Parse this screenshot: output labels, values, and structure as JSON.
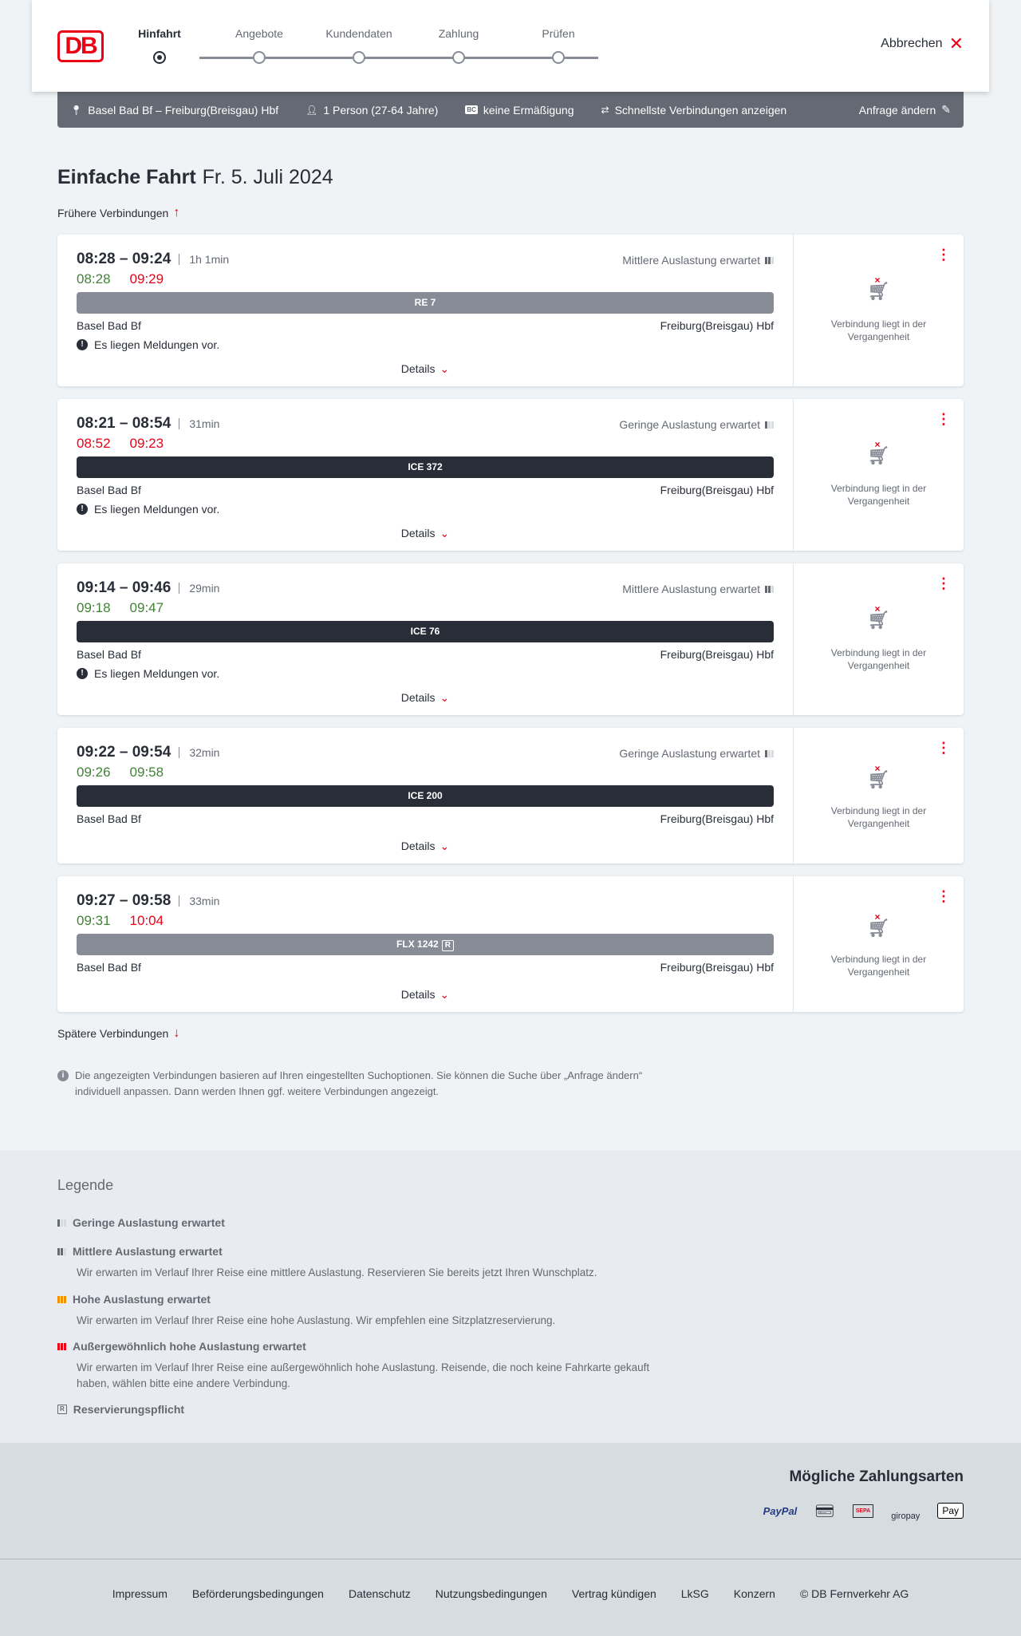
{
  "header": {
    "logo": "DB",
    "steps": [
      "Hinfahrt",
      "Angebote",
      "Kundendaten",
      "Zahlung",
      "Prüfen"
    ],
    "active_step": 0,
    "cancel": "Abbrechen"
  },
  "infobar": {
    "route": "Basel Bad Bf – Freiburg(Breisgau) Hbf",
    "passengers": "1 Person (27-64 Jahre)",
    "bc_badge": "BC",
    "discount": "keine Ermäßigung",
    "fastest": "Schnellste Verbindungen anzeigen",
    "edit": "Anfrage ändern"
  },
  "title": {
    "main": "Einfache Fahrt",
    "date": "Fr. 5. Juli 2024"
  },
  "earlier": "Frühere Verbindungen",
  "later": "Spätere Verbindungen",
  "connections": [
    {
      "time": "08:28 – 09:24",
      "duration": "1h 1min",
      "rt_dep": "08:28",
      "rt_arr": "09:29",
      "dep_color": "green",
      "arr_color": "red",
      "load": "Mittlere Auslastung erwartet",
      "load_level": 2,
      "train": "RE 7",
      "train_style": "grey",
      "from": "Basel Bad Bf",
      "to": "Freiburg(Breisgau) Hbf",
      "message": "Es liegen Meldungen vor.",
      "details": "Details",
      "status": "Verbindung liegt in der Vergangenheit"
    },
    {
      "time": "08:21 – 08:54",
      "duration": "31min",
      "rt_dep": "08:52",
      "rt_arr": "09:23",
      "dep_color": "red",
      "arr_color": "red",
      "load": "Geringe Auslastung erwartet",
      "load_level": 1,
      "train": "ICE 372",
      "train_style": "dark",
      "from": "Basel Bad Bf",
      "to": "Freiburg(Breisgau) Hbf",
      "message": "Es liegen Meldungen vor.",
      "details": "Details",
      "status": "Verbindung liegt in der Vergangenheit"
    },
    {
      "time": "09:14 – 09:46",
      "duration": "29min",
      "rt_dep": "09:18",
      "rt_arr": "09:47",
      "dep_color": "green",
      "arr_color": "green",
      "load": "Mittlere Auslastung erwartet",
      "load_level": 2,
      "train": "ICE 76",
      "train_style": "dark",
      "from": "Basel Bad Bf",
      "to": "Freiburg(Breisgau) Hbf",
      "message": "Es liegen Meldungen vor.",
      "details": "Details",
      "status": "Verbindung liegt in der Vergangenheit"
    },
    {
      "time": "09:22 – 09:54",
      "duration": "32min",
      "rt_dep": "09:26",
      "rt_arr": "09:58",
      "dep_color": "green",
      "arr_color": "green",
      "load": "Geringe Auslastung erwartet",
      "load_level": 1,
      "train": "ICE 200",
      "train_style": "dark",
      "from": "Basel Bad Bf",
      "to": "Freiburg(Breisgau) Hbf",
      "details": "Details",
      "status": "Verbindung liegt in der Vergangenheit"
    },
    {
      "time": "09:27 – 09:58",
      "duration": "33min",
      "rt_dep": "09:31",
      "rt_arr": "10:04",
      "dep_color": "green",
      "arr_color": "red",
      "train": "FLX 1242",
      "train_badge": "R",
      "train_style": "grey",
      "from": "Basel Bad Bf",
      "to": "Freiburg(Breisgau) Hbf",
      "details": "Details",
      "status": "Verbindung liegt in der Vergangenheit"
    }
  ],
  "note": "Die angezeigten Verbindungen basieren auf Ihren eingestellten Suchoptionen. Sie können die Suche über „Anfrage ändern“ individuell anpassen. Dann werden Ihnen ggf. weitere Verbindungen angezeigt.",
  "legend": {
    "title": "Legende",
    "items": [
      {
        "title": "Geringe Auslastung erwartet"
      },
      {
        "title": "Mittlere Auslastung erwartet",
        "desc": "Wir erwarten im Verlauf Ihrer Reise eine mittlere Auslastung. Reservieren Sie bereits jetzt Ihren Wunschplatz."
      },
      {
        "title": "Hohe Auslastung erwartet",
        "desc": "Wir erwarten im Verlauf Ihrer Reise eine hohe Auslastung. Wir empfehlen eine Sitzplatzreservierung."
      },
      {
        "title": "Außergewöhnlich hohe Auslastung erwartet",
        "desc": "Wir erwarten im Verlauf Ihrer Reise eine außergewöhnlich hohe Auslastung. Reisende, die noch keine Fahrkarte gekauft haben, wählen bitte eine andere Verbindung."
      },
      {
        "title": "Reservierungspflicht",
        "icon_text": "R"
      }
    ],
    "colors": {
      "high": "#f39200",
      "extreme": "#ec0016"
    }
  },
  "payment": {
    "title": "Mögliche Zahlungsarten",
    "methods": [
      "PayPal",
      "Kreditkarte",
      "SEPA",
      "giropay",
      "Pay"
    ]
  },
  "footer": {
    "links": [
      "Impressum",
      "Beförderungsbedingungen",
      "Datenschutz",
      "Nutzungsbedingungen",
      "Vertrag kündigen",
      "LkSG",
      "Konzern",
      "© DB Fernverkehr AG"
    ]
  },
  "colors": {
    "brand": "#ec0016",
    "on_time": "#408335",
    "delayed": "#ec0016"
  }
}
